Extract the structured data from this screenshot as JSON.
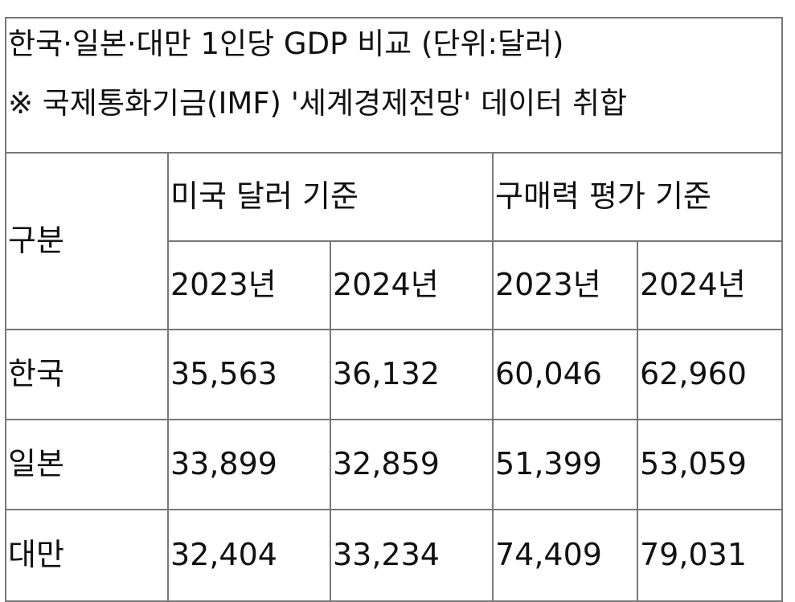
{
  "caption": {
    "title": "한국·일본·대만 1인당 GDP 비교 (단위:달러)",
    "source": "※ 국제통화기금(IMF) '세계경제전망' 데이터 취합"
  },
  "header": {
    "category": "구분",
    "usd_group": "미국 달러 기준",
    "ppp_group": "구매력 평가 기준",
    "years": [
      "2023년",
      "2024년",
      "2023년",
      "2024년"
    ]
  },
  "rows": [
    {
      "country": "한국",
      "values": [
        "35,563",
        "36,132",
        "60,046",
        "62,960"
      ]
    },
    {
      "country": "일본",
      "values": [
        "33,899",
        "32,859",
        "51,399",
        "53,059"
      ]
    },
    {
      "country": "대만",
      "values": [
        "32,404",
        "33,234",
        "74,409",
        "79,031"
      ]
    }
  ],
  "colors": {
    "border": "#777777",
    "text": "#111111",
    "background": "#ffffff"
  }
}
